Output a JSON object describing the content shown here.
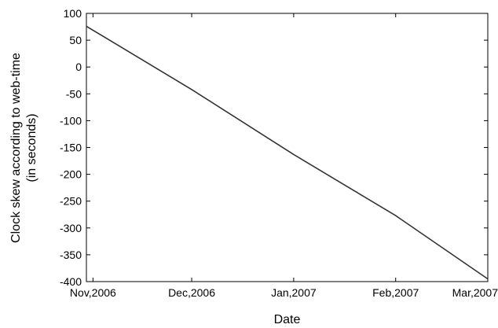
{
  "chart_data": {
    "type": "line",
    "xlabel": "Date",
    "ylabel_lines": [
      "Clock skew according to web-time",
      "(in seconds)"
    ],
    "xlim": [
      "2006-10-30",
      "2007-03-01"
    ],
    "ylim": [
      -400,
      100
    ],
    "x_ticks": [
      {
        "date": "2006-11-01",
        "label": "Nov,2006"
      },
      {
        "date": "2006-12-01",
        "label": "Dec,2006"
      },
      {
        "date": "2007-01-01",
        "label": "Jan,2007"
      },
      {
        "date": "2007-02-01",
        "label": "Feb,2007"
      },
      {
        "date": "2007-03-01",
        "label": "Mar,2007"
      }
    ],
    "y_ticks": [
      100,
      50,
      0,
      -50,
      -100,
      -150,
      -200,
      -250,
      -300,
      -350,
      -400
    ],
    "grid": false,
    "series": [
      {
        "color": "#333333",
        "points": [
          {
            "x": "2006-10-30",
            "y": 76
          },
          {
            "x": "2006-12-01",
            "y": -42
          },
          {
            "x": "2007-01-01",
            "y": -163
          },
          {
            "x": "2007-02-01",
            "y": -277
          },
          {
            "x": "2007-03-01",
            "y": -395
          }
        ]
      }
    ]
  }
}
